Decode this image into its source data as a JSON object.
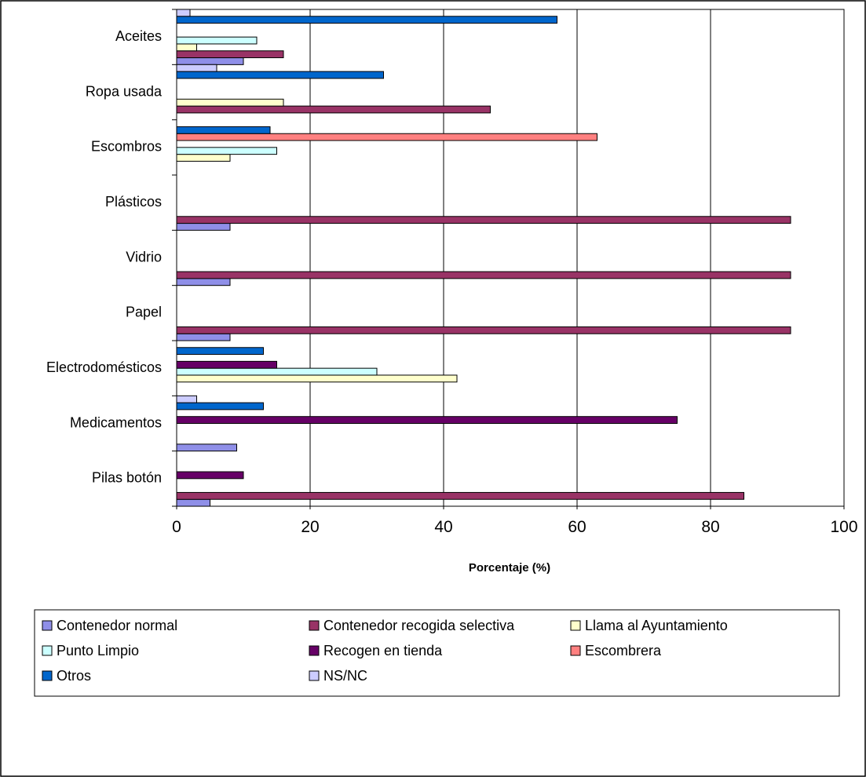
{
  "chart_data": {
    "type": "bar",
    "orientation": "horizontal",
    "categories": [
      "Aceites",
      "Ropa usada",
      "Escombros",
      "Plásticos",
      "Vidrio",
      "Papel",
      "Electrodomésticos",
      "Medicamentos",
      "Pilas botón"
    ],
    "xlabel": "Porcentaje (%)",
    "ylabel": "",
    "xlim": [
      0,
      100
    ],
    "xticks": [
      "0",
      "20",
      "40",
      "60",
      "80",
      "100"
    ],
    "grid": "vertical",
    "legend_position": "bottom",
    "series": [
      {
        "name": "Contenedor normal",
        "color": "#8f8fe8",
        "values": [
          10,
          0,
          0,
          8,
          8,
          8,
          0,
          9,
          5
        ]
      },
      {
        "name": "Contenedor recogida selectiva",
        "color": "#993366",
        "values": [
          16,
          47,
          0,
          92,
          92,
          92,
          0,
          0,
          85
        ]
      },
      {
        "name": "Llama al Ayuntamiento",
        "color": "#ffffcc",
        "values": [
          3,
          16,
          8,
          0,
          0,
          0,
          42,
          0,
          0
        ]
      },
      {
        "name": "Punto Limpio",
        "color": "#ccffff",
        "values": [
          12,
          0,
          15,
          0,
          0,
          0,
          30,
          0,
          0
        ]
      },
      {
        "name": "Recogen en tienda",
        "color": "#660066",
        "values": [
          0,
          0,
          0,
          0,
          0,
          0,
          15,
          75,
          10
        ]
      },
      {
        "name": "Escombrera",
        "color": "#ff8080",
        "values": [
          0,
          0,
          63,
          0,
          0,
          0,
          0,
          0,
          0
        ]
      },
      {
        "name": "Otros",
        "color": "#0066cc",
        "values": [
          57,
          31,
          14,
          0,
          0,
          0,
          13,
          13,
          0
        ]
      },
      {
        "name": "NS/NC",
        "color": "#ccccff",
        "values": [
          2,
          6,
          0,
          0,
          0,
          0,
          0,
          3,
          0
        ]
      }
    ]
  }
}
